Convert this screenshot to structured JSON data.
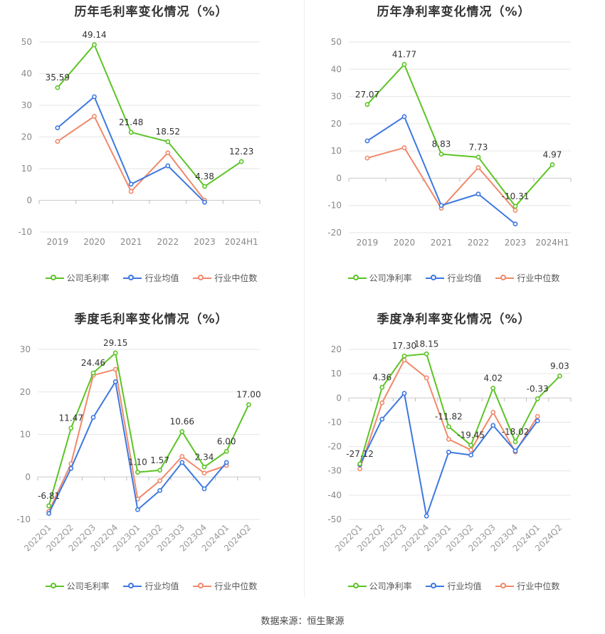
{
  "colors": {
    "company": "#5cc425",
    "avg": "#3d78e0",
    "median": "#f0896b",
    "grid": "#e6e6e6",
    "axis": "#999999"
  },
  "source": "数据来源：恒生聚源",
  "chart_data": [
    {
      "type": "line",
      "title": "历年毛利率变化情况（%）",
      "categories": [
        "2019",
        "2020",
        "2021",
        "2022",
        "2023",
        "2024H1"
      ],
      "ylim": [
        -10,
        50
      ],
      "yticks": [
        "-10",
        "0",
        "10",
        "20",
        "30",
        "40",
        "50"
      ],
      "grid": true,
      "legend_position": "bottom",
      "legend": [
        "公司毛利率",
        "行业均值",
        "行业中位数"
      ],
      "series": [
        {
          "name": "公司毛利率",
          "values": [
            35.59,
            49.14,
            21.48,
            18.52,
            4.38,
            12.23
          ],
          "labels": [
            "35.59",
            "49.14",
            "21.48",
            "18.52",
            "4.38",
            "12.23"
          ]
        },
        {
          "name": "行业均值",
          "values": [
            22.9,
            32.7,
            5.1,
            10.9,
            -0.6,
            null
          ]
        },
        {
          "name": "行业中位数",
          "values": [
            18.6,
            26.5,
            2.8,
            15.0,
            0.0,
            null
          ]
        }
      ]
    },
    {
      "type": "line",
      "title": "历年净利率变化情况（%）",
      "categories": [
        "2019",
        "2020",
        "2021",
        "2022",
        "2023",
        "2024H1"
      ],
      "ylim": [
        -20,
        50
      ],
      "yticks": [
        "-20",
        "-10",
        "0",
        "10",
        "20",
        "30",
        "40",
        "50"
      ],
      "grid": true,
      "legend_position": "bottom",
      "legend": [
        "公司净利率",
        "行业均值",
        "行业中位数"
      ],
      "series": [
        {
          "name": "公司净利率",
          "values": [
            27.07,
            41.77,
            8.83,
            7.73,
            -10.31,
            4.97
          ],
          "labels": [
            "27.07",
            "41.77",
            "8.83",
            "7.73",
            "-10.31",
            "4.97"
          ]
        },
        {
          "name": "行业均值",
          "values": [
            13.7,
            22.6,
            -10.0,
            -5.8,
            -16.8,
            null
          ]
        },
        {
          "name": "行业中位数",
          "values": [
            7.4,
            11.2,
            -11.0,
            3.9,
            -11.8,
            null
          ]
        }
      ]
    },
    {
      "type": "line",
      "title": "季度毛利率变化情况（%）",
      "categories": [
        "2022Q1",
        "2022Q2",
        "2022Q3",
        "2022Q4",
        "2023Q1",
        "2023Q2",
        "2023Q3",
        "2023Q4",
        "2024Q1",
        "2024Q2"
      ],
      "ylim": [
        -10,
        30
      ],
      "yticks": [
        "-10",
        "0",
        "10",
        "20",
        "30"
      ],
      "grid": true,
      "legend_position": "bottom",
      "legend": [
        "公司毛利率",
        "行业均值",
        "行业中位数"
      ],
      "series": [
        {
          "name": "公司毛利率",
          "values": [
            -6.81,
            11.47,
            24.46,
            29.15,
            1.1,
            1.57,
            10.66,
            2.34,
            6.0,
            17.0
          ],
          "labels": [
            "-6.81",
            "11.47",
            "24.46",
            "29.15",
            "1.10",
            "1.57",
            "10.66",
            "2.34",
            "6.00",
            "17.00"
          ]
        },
        {
          "name": "行业均值",
          "values": [
            -8.6,
            2.0,
            14.0,
            22.4,
            -7.7,
            -3.2,
            3.4,
            -2.8,
            3.4,
            null
          ]
        },
        {
          "name": "行业中位数",
          "values": [
            -8.1,
            3.1,
            23.9,
            25.3,
            -5.2,
            -0.9,
            4.8,
            0.9,
            2.7,
            null
          ]
        }
      ]
    },
    {
      "type": "line",
      "title": "季度净利率变化情况（%）",
      "categories": [
        "2022Q1",
        "2022Q2",
        "2022Q3",
        "2022Q4",
        "2023Q1",
        "2023Q2",
        "2023Q3",
        "2023Q4",
        "2024Q1",
        "2024Q2"
      ],
      "ylim": [
        -50,
        20
      ],
      "yticks": [
        "-50",
        "-40",
        "-30",
        "-20",
        "-10",
        "0",
        "10",
        "20"
      ],
      "grid": true,
      "legend_position": "bottom",
      "legend": [
        "公司净利率",
        "行业均值",
        "行业中位数"
      ],
      "series": [
        {
          "name": "公司净利率",
          "values": [
            -27.12,
            4.36,
            17.3,
            18.15,
            -11.82,
            -19.45,
            4.02,
            -18.02,
            -0.33,
            9.03
          ],
          "labels": [
            "-27.12",
            "4.36",
            "17.30",
            "18.15",
            "-11.82",
            "-19.45",
            "4.02",
            "-18.02",
            "-0.33",
            "9.03"
          ]
        },
        {
          "name": "行业均值",
          "values": [
            -27.5,
            -8.7,
            1.9,
            -48.6,
            -22.3,
            -23.5,
            -11.3,
            -21.8,
            -9.4,
            null
          ]
        },
        {
          "name": "行业中位数",
          "values": [
            -29.2,
            -2.0,
            15.6,
            8.3,
            -17.0,
            -21.4,
            -5.9,
            -22.2,
            -7.6,
            null
          ]
        }
      ]
    }
  ]
}
